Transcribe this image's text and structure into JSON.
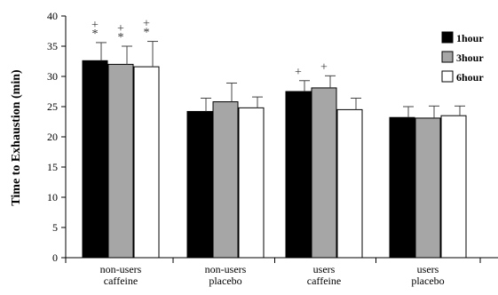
{
  "chart_data": {
    "type": "bar",
    "ylabel": "Time to Exhaustion (min)",
    "ylim": [
      0,
      40
    ],
    "yticks": [
      0,
      5,
      10,
      15,
      20,
      25,
      30,
      35,
      40
    ],
    "grid": false,
    "legend_position": "top-right",
    "categories": [
      [
        "non-users",
        "caffeine"
      ],
      [
        "non-users",
        "placebo"
      ],
      [
        "users",
        "caffeine"
      ],
      [
        "users",
        "placebo"
      ]
    ],
    "series": [
      {
        "name": "1hour",
        "color": "#000000",
        "values": [
          32.6,
          24.2,
          27.5,
          23.2
        ],
        "errors": [
          3.0,
          2.2,
          1.8,
          1.8
        ]
      },
      {
        "name": "3hour",
        "color": "#a6a6a6",
        "values": [
          32.0,
          25.8,
          28.1,
          23.1
        ],
        "errors": [
          3.0,
          3.1,
          2.0,
          2.0
        ]
      },
      {
        "name": "6hour",
        "color": "#ffffff",
        "values": [
          31.6,
          24.8,
          24.5,
          23.5
        ],
        "errors": [
          4.2,
          1.8,
          1.9,
          1.6
        ]
      }
    ],
    "annotations": [
      {
        "category": 0,
        "series": 0,
        "marks": [
          "+",
          "*"
        ]
      },
      {
        "category": 0,
        "series": 1,
        "marks": [
          "+",
          "*"
        ]
      },
      {
        "category": 0,
        "series": 2,
        "marks": [
          "+",
          "*"
        ]
      },
      {
        "category": 2,
        "series": 0,
        "marks": [
          "+"
        ]
      },
      {
        "category": 2,
        "series": 1,
        "marks": [
          "+"
        ]
      }
    ]
  }
}
